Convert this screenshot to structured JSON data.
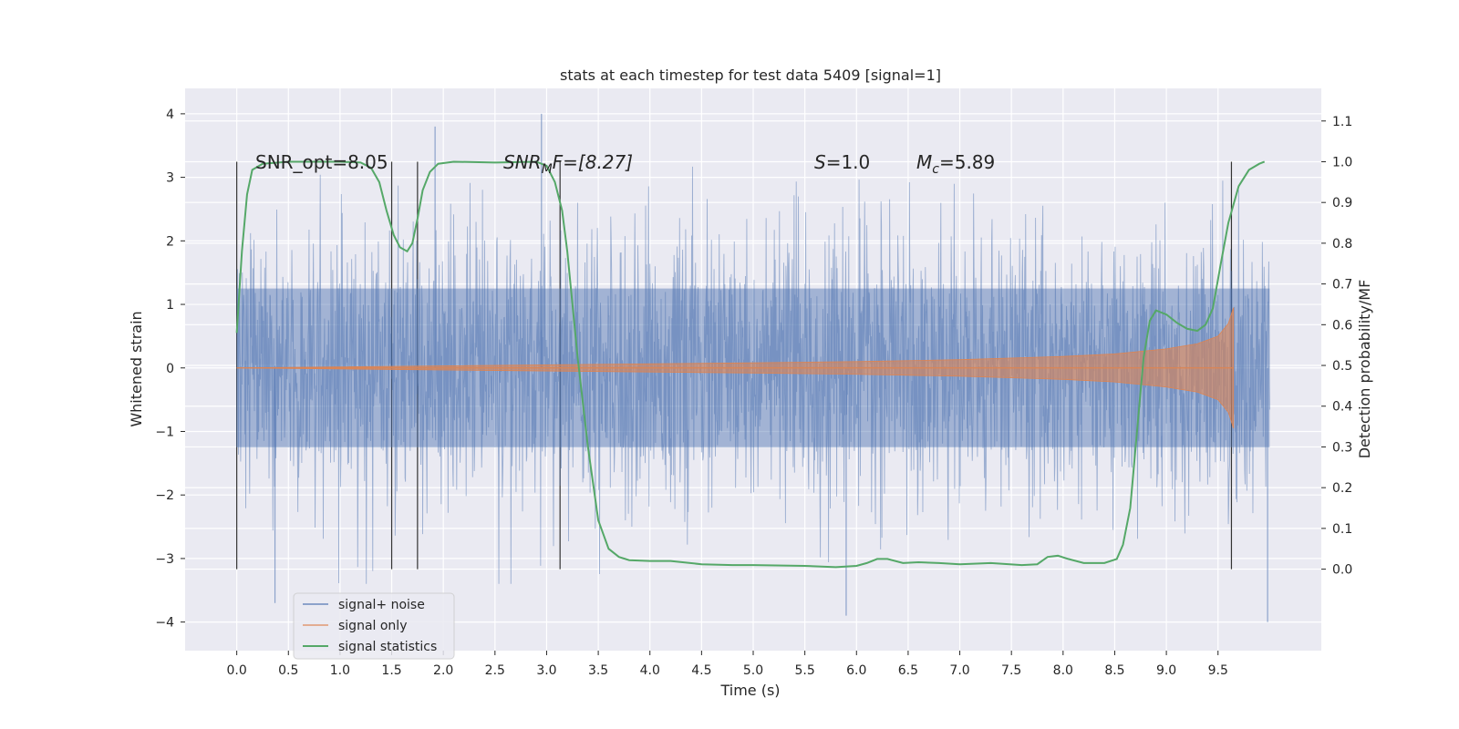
{
  "chart_data": {
    "type": "line",
    "title": "stats at each timestep for test data 5409 [signal=1]",
    "xlabel": "Time (s)",
    "ylabel_left": "Whitened strain",
    "ylabel_right": "Detection probability/MF",
    "xlim": [
      -0.5,
      10.5
    ],
    "ylim_left": [
      -4.45,
      4.4
    ],
    "ylim_right": [
      -0.2,
      1.18
    ],
    "x_ticks": [
      "0.0",
      "0.5",
      "1.0",
      "1.5",
      "2.0",
      "2.5",
      "3.0",
      "3.5",
      "4.0",
      "4.5",
      "5.0",
      "5.5",
      "6.0",
      "6.5",
      "7.0",
      "7.5",
      "8.0",
      "8.5",
      "9.0",
      "9.5"
    ],
    "y_left_ticks": [
      "4",
      "3",
      "2",
      "1",
      "0",
      "−1",
      "−2",
      "−3",
      "−4"
    ],
    "y_right_ticks": [
      "1.1",
      "1.0",
      "0.9",
      "0.8",
      "0.7",
      "0.6",
      "0.5",
      "0.4",
      "0.3",
      "0.2",
      "0.1",
      "0.0"
    ],
    "grid": true,
    "legend_position": "lower-left",
    "annotations": {
      "snr_opt": "SNR_opt=8.05",
      "snr_mf_base": "SNR",
      "snr_mf_sub": "M",
      "snr_mf_rest": "F=[8.27]",
      "s_label": "S",
      "s_value": "=1.0",
      "mc_label": "M",
      "mc_sub": "c",
      "mc_value": "=5.89"
    },
    "vertical_markers_s": [
      0.0,
      1.5,
      1.75,
      3.13,
      9.63
    ],
    "series": [
      {
        "name": "signal+ noise",
        "color": "#4c72b0",
        "axis": "left",
        "t_range": [
          0.0,
          10.0
        ],
        "core_band": [
          -1.25,
          1.25
        ],
        "typical_extent": [
          -2.6,
          2.6
        ],
        "extremes": [
          {
            "t": 0.37,
            "v": -3.7
          },
          {
            "t": 1.92,
            "v": 3.8
          },
          {
            "t": 2.95,
            "v": 4.0
          },
          {
            "t": 5.9,
            "v": -3.9
          },
          {
            "t": 9.98,
            "v": -4.0
          }
        ]
      },
      {
        "name": "signal only",
        "color": "#dd8452",
        "axis": "left",
        "t_range": [
          0.0,
          9.65
        ],
        "envelope": [
          {
            "t": 0.0,
            "amp": 0.0
          },
          {
            "t": 5.0,
            "amp": 0.08
          },
          {
            "t": 6.0,
            "amp": 0.1
          },
          {
            "t": 7.0,
            "amp": 0.13
          },
          {
            "t": 8.0,
            "amp": 0.18
          },
          {
            "t": 8.5,
            "amp": 0.22
          },
          {
            "t": 9.0,
            "amp": 0.3
          },
          {
            "t": 9.3,
            "amp": 0.38
          },
          {
            "t": 9.5,
            "amp": 0.5
          },
          {
            "t": 9.6,
            "amp": 0.7
          },
          {
            "t": 9.65,
            "amp": 0.95
          }
        ]
      },
      {
        "name": "signal statistics",
        "color": "#55a868",
        "axis": "right",
        "points": [
          [
            0.0,
            0.58
          ],
          [
            0.05,
            0.78
          ],
          [
            0.1,
            0.92
          ],
          [
            0.15,
            0.98
          ],
          [
            0.25,
            0.995
          ],
          [
            0.5,
            1.0
          ],
          [
            1.0,
            1.0
          ],
          [
            1.2,
            0.998
          ],
          [
            1.3,
            0.985
          ],
          [
            1.38,
            0.95
          ],
          [
            1.45,
            0.88
          ],
          [
            1.52,
            0.82
          ],
          [
            1.58,
            0.79
          ],
          [
            1.65,
            0.78
          ],
          [
            1.7,
            0.8
          ],
          [
            1.75,
            0.86
          ],
          [
            1.8,
            0.93
          ],
          [
            1.87,
            0.975
          ],
          [
            1.95,
            0.995
          ],
          [
            2.1,
            1.0
          ],
          [
            2.5,
            0.998
          ],
          [
            2.9,
            1.0
          ],
          [
            3.0,
            0.99
          ],
          [
            3.08,
            0.95
          ],
          [
            3.15,
            0.88
          ],
          [
            3.2,
            0.78
          ],
          [
            3.3,
            0.52
          ],
          [
            3.4,
            0.3
          ],
          [
            3.5,
            0.12
          ],
          [
            3.6,
            0.05
          ],
          [
            3.7,
            0.03
          ],
          [
            3.8,
            0.022
          ],
          [
            4.0,
            0.02
          ],
          [
            4.2,
            0.02
          ],
          [
            4.5,
            0.012
          ],
          [
            4.8,
            0.01
          ],
          [
            5.0,
            0.01
          ],
          [
            5.5,
            0.008
          ],
          [
            5.8,
            0.005
          ],
          [
            6.0,
            0.008
          ],
          [
            6.1,
            0.015
          ],
          [
            6.2,
            0.025
          ],
          [
            6.3,
            0.025
          ],
          [
            6.45,
            0.015
          ],
          [
            6.6,
            0.017
          ],
          [
            6.8,
            0.015
          ],
          [
            7.0,
            0.012
          ],
          [
            7.3,
            0.015
          ],
          [
            7.6,
            0.01
          ],
          [
            7.75,
            0.012
          ],
          [
            7.85,
            0.03
          ],
          [
            7.95,
            0.033
          ],
          [
            8.05,
            0.025
          ],
          [
            8.2,
            0.015
          ],
          [
            8.4,
            0.015
          ],
          [
            8.52,
            0.025
          ],
          [
            8.58,
            0.06
          ],
          [
            8.65,
            0.15
          ],
          [
            8.72,
            0.35
          ],
          [
            8.78,
            0.52
          ],
          [
            8.84,
            0.61
          ],
          [
            8.9,
            0.635
          ],
          [
            9.0,
            0.625
          ],
          [
            9.1,
            0.605
          ],
          [
            9.2,
            0.59
          ],
          [
            9.3,
            0.585
          ],
          [
            9.38,
            0.6
          ],
          [
            9.45,
            0.64
          ],
          [
            9.52,
            0.74
          ],
          [
            9.6,
            0.85
          ],
          [
            9.7,
            0.94
          ],
          [
            9.8,
            0.98
          ],
          [
            9.9,
            0.995
          ],
          [
            9.95,
            1.0
          ]
        ]
      }
    ]
  }
}
